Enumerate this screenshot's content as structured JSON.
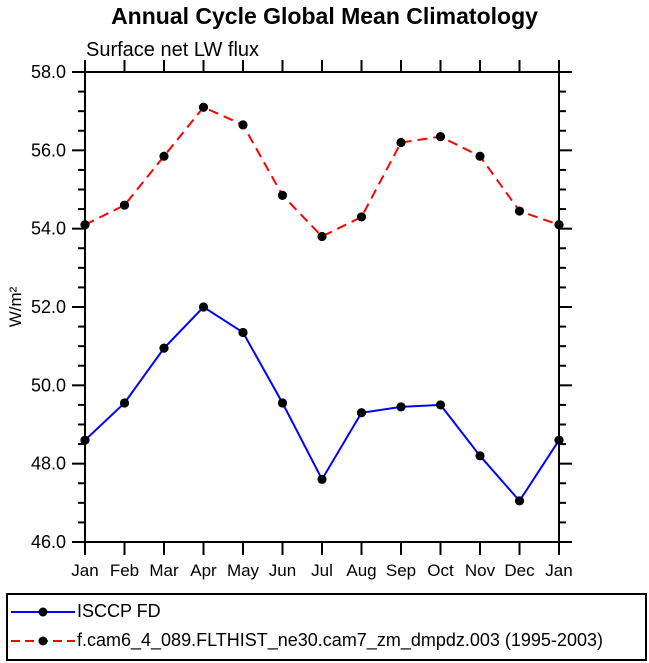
{
  "chart_data": {
    "type": "line",
    "title": "Annual Cycle Global Mean Climatology",
    "subtitle": "Surface net LW flux",
    "ylabel": "W/m²",
    "xlabel": "",
    "ylim": [
      46.0,
      58.0
    ],
    "ytick_major_step": 2.0,
    "ytick_minor_step": 0.5,
    "ytick_labels": [
      "46.0",
      "48.0",
      "50.0",
      "52.0",
      "54.0",
      "56.0",
      "58.0"
    ],
    "categories": [
      "Jan",
      "Feb",
      "Mar",
      "Apr",
      "May",
      "Jun",
      "Jul",
      "Aug",
      "Sep",
      "Oct",
      "Nov",
      "Dec",
      "Jan"
    ],
    "grid": false,
    "legend_position": "bottom",
    "marker": "filled-circle",
    "marker_color": "#000000",
    "series": [
      {
        "name": "ISCCP FD",
        "color": "#0000ff",
        "line_style": "solid",
        "values": [
          48.6,
          49.55,
          50.95,
          52.0,
          51.35,
          49.55,
          47.6,
          49.3,
          49.45,
          49.5,
          48.2,
          47.05,
          48.6
        ]
      },
      {
        "name": "f.cam6_4_089.FLTHIST_ne30.cam7_zm_dmpdz.003 (1995-2003)",
        "color": "#ff0000",
        "line_style": "dashed",
        "values": [
          54.1,
          54.6,
          55.85,
          57.1,
          56.65,
          54.85,
          53.8,
          54.3,
          56.2,
          56.35,
          55.85,
          54.45,
          54.1
        ]
      }
    ]
  }
}
